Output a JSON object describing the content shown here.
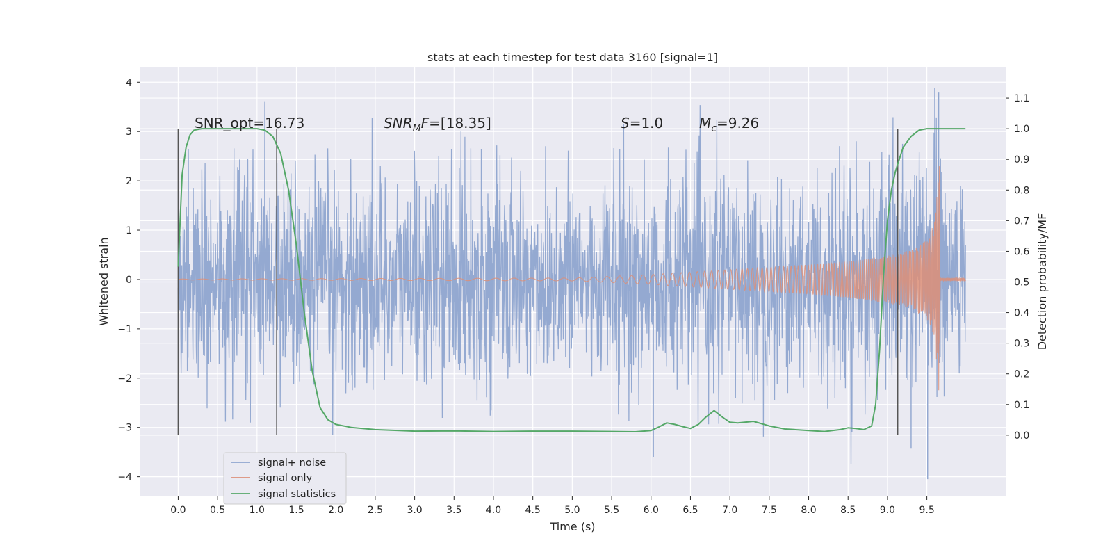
{
  "chart_data": {
    "type": "line",
    "title": "stats at each timestep for test data 3160 [signal=1]",
    "xlabel": "Time (s)",
    "ylabel": "Whitened strain",
    "y2label": "Detection probability/MF",
    "xlim": [
      -0.48,
      10.5
    ],
    "ylim": [
      -4.4,
      4.3
    ],
    "y2lim": [
      -0.2,
      1.2
    ],
    "xticks": [
      "0.0",
      "0.5",
      "1.0",
      "1.5",
      "2.0",
      "2.5",
      "3.0",
      "3.5",
      "4.0",
      "4.5",
      "5.0",
      "5.5",
      "6.0",
      "6.5",
      "7.0",
      "7.5",
      "8.0",
      "8.5",
      "9.0",
      "9.5"
    ],
    "yticks": [
      "4",
      "3",
      "2",
      "1",
      "0",
      "−1",
      "−2",
      "−3",
      "−4"
    ],
    "y2ticks": [
      "1.1",
      "1.0",
      "0.9",
      "0.8",
      "0.7",
      "0.6",
      "0.5",
      "0.4",
      "0.3",
      "0.2",
      "0.1",
      "0.0"
    ],
    "grid": true,
    "legend_position": "lower left",
    "annotations": {
      "snr_opt": "SNR_opt=16.73",
      "snr_mf_italic": "SNR",
      "snr_mf_sub": "M",
      "snr_mf_f": "F",
      "snr_mf_value": "=[18.35]",
      "s_label": "S",
      "s_value": "=1.0",
      "mc_label": "M",
      "mc_sub": "c",
      "mc_value": "=9.26"
    },
    "vlines_x": [
      0.0,
      1.25,
      9.13
    ],
    "series": [
      {
        "name": "signal+ noise",
        "color": "#8fa5cf",
        "axis": "left",
        "x_range": [
          0.0,
          9.99
        ],
        "noise_sigma": 1.05,
        "max_value": 3.93,
        "min_value": -4.05
      },
      {
        "name": "signal only",
        "color": "#dd8f78",
        "axis": "left",
        "envelope_x": [
          0.0,
          5.0,
          6.0,
          7.0,
          8.0,
          8.5,
          9.0,
          9.3,
          9.5,
          9.6,
          9.66,
          9.67,
          9.99
        ],
        "envelope_y": [
          0.01,
          0.03,
          0.1,
          0.2,
          0.3,
          0.37,
          0.48,
          0.6,
          0.8,
          1.2,
          2.45,
          0.03,
          0.03
        ]
      },
      {
        "name": "signal statistics",
        "color": "#55a868",
        "axis": "right",
        "x": [
          0.0,
          0.05,
          0.1,
          0.15,
          0.2,
          0.3,
          0.5,
          0.8,
          1.0,
          1.1,
          1.2,
          1.3,
          1.4,
          1.5,
          1.6,
          1.7,
          1.8,
          1.9,
          2.0,
          2.2,
          2.5,
          3.0,
          3.5,
          4.0,
          4.5,
          5.0,
          5.5,
          5.8,
          6.0,
          6.1,
          6.2,
          6.3,
          6.4,
          6.5,
          6.6,
          6.7,
          6.8,
          6.9,
          7.0,
          7.1,
          7.3,
          7.5,
          7.7,
          8.0,
          8.2,
          8.4,
          8.5,
          8.6,
          8.7,
          8.8,
          8.85,
          8.9,
          8.95,
          9.0,
          9.05,
          9.1,
          9.15,
          9.2,
          9.3,
          9.4,
          9.5,
          9.7,
          9.99
        ],
        "y": [
          0.55,
          0.85,
          0.94,
          0.98,
          0.995,
          1.0,
          1.0,
          1.0,
          1.0,
          0.995,
          0.975,
          0.92,
          0.8,
          0.62,
          0.4,
          0.21,
          0.09,
          0.05,
          0.035,
          0.025,
          0.018,
          0.013,
          0.014,
          0.012,
          0.013,
          0.013,
          0.012,
          0.011,
          0.015,
          0.027,
          0.04,
          0.035,
          0.028,
          0.022,
          0.035,
          0.06,
          0.08,
          0.06,
          0.042,
          0.04,
          0.045,
          0.03,
          0.02,
          0.015,
          0.012,
          0.018,
          0.024,
          0.022,
          0.018,
          0.03,
          0.1,
          0.28,
          0.52,
          0.7,
          0.8,
          0.86,
          0.9,
          0.94,
          0.975,
          0.995,
          1.0,
          1.0,
          1.0
        ]
      }
    ]
  }
}
